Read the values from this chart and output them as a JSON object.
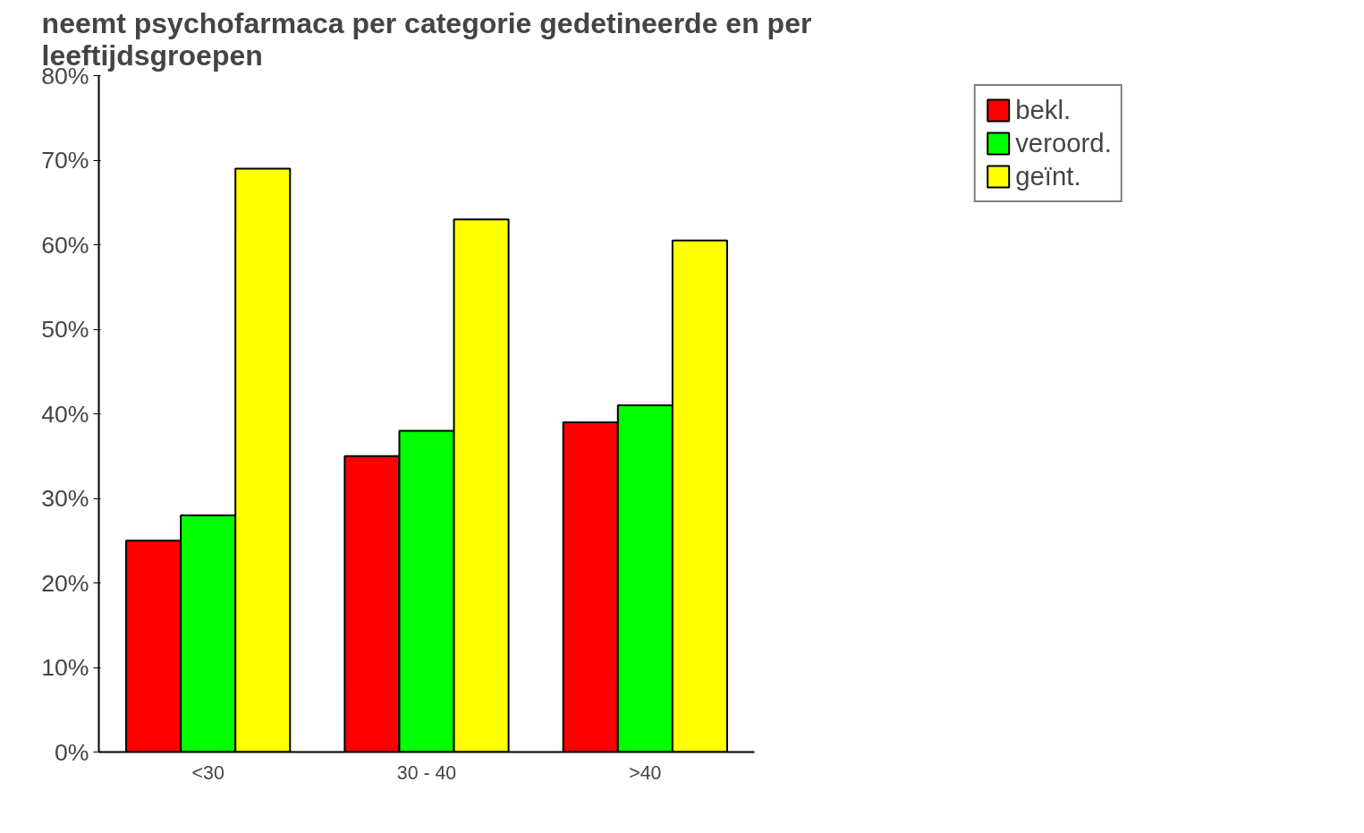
{
  "chart_data": {
    "type": "bar",
    "title": "neemt psychofarmaca per categorie gedetineerde en per leeftijdsgroepen",
    "categories": [
      "<30",
      "30 - 40",
      ">40"
    ],
    "series": [
      {
        "name": "bekl.",
        "color": "#ff0000",
        "values": [
          25,
          35,
          39
        ]
      },
      {
        "name": "veroord.",
        "color": "#00ff00",
        "values": [
          28,
          38,
          41
        ]
      },
      {
        "name": "geïnt.",
        "color": "#ffff00",
        "values": [
          69,
          63,
          60.5
        ]
      }
    ],
    "ylim": [
      0,
      80
    ],
    "yticks": [
      {
        "value": 0,
        "label": "0%"
      },
      {
        "value": 10,
        "label": "10%"
      },
      {
        "value": 20,
        "label": "20%"
      },
      {
        "value": 30,
        "label": "30%"
      },
      {
        "value": 40,
        "label": "40%"
      },
      {
        "value": 50,
        "label": "50%"
      },
      {
        "value": 60,
        "label": "60%"
      },
      {
        "value": 70,
        "label": "70%"
      },
      {
        "value": 80,
        "label": "80%"
      }
    ],
    "grid": false,
    "legend": "top right"
  }
}
